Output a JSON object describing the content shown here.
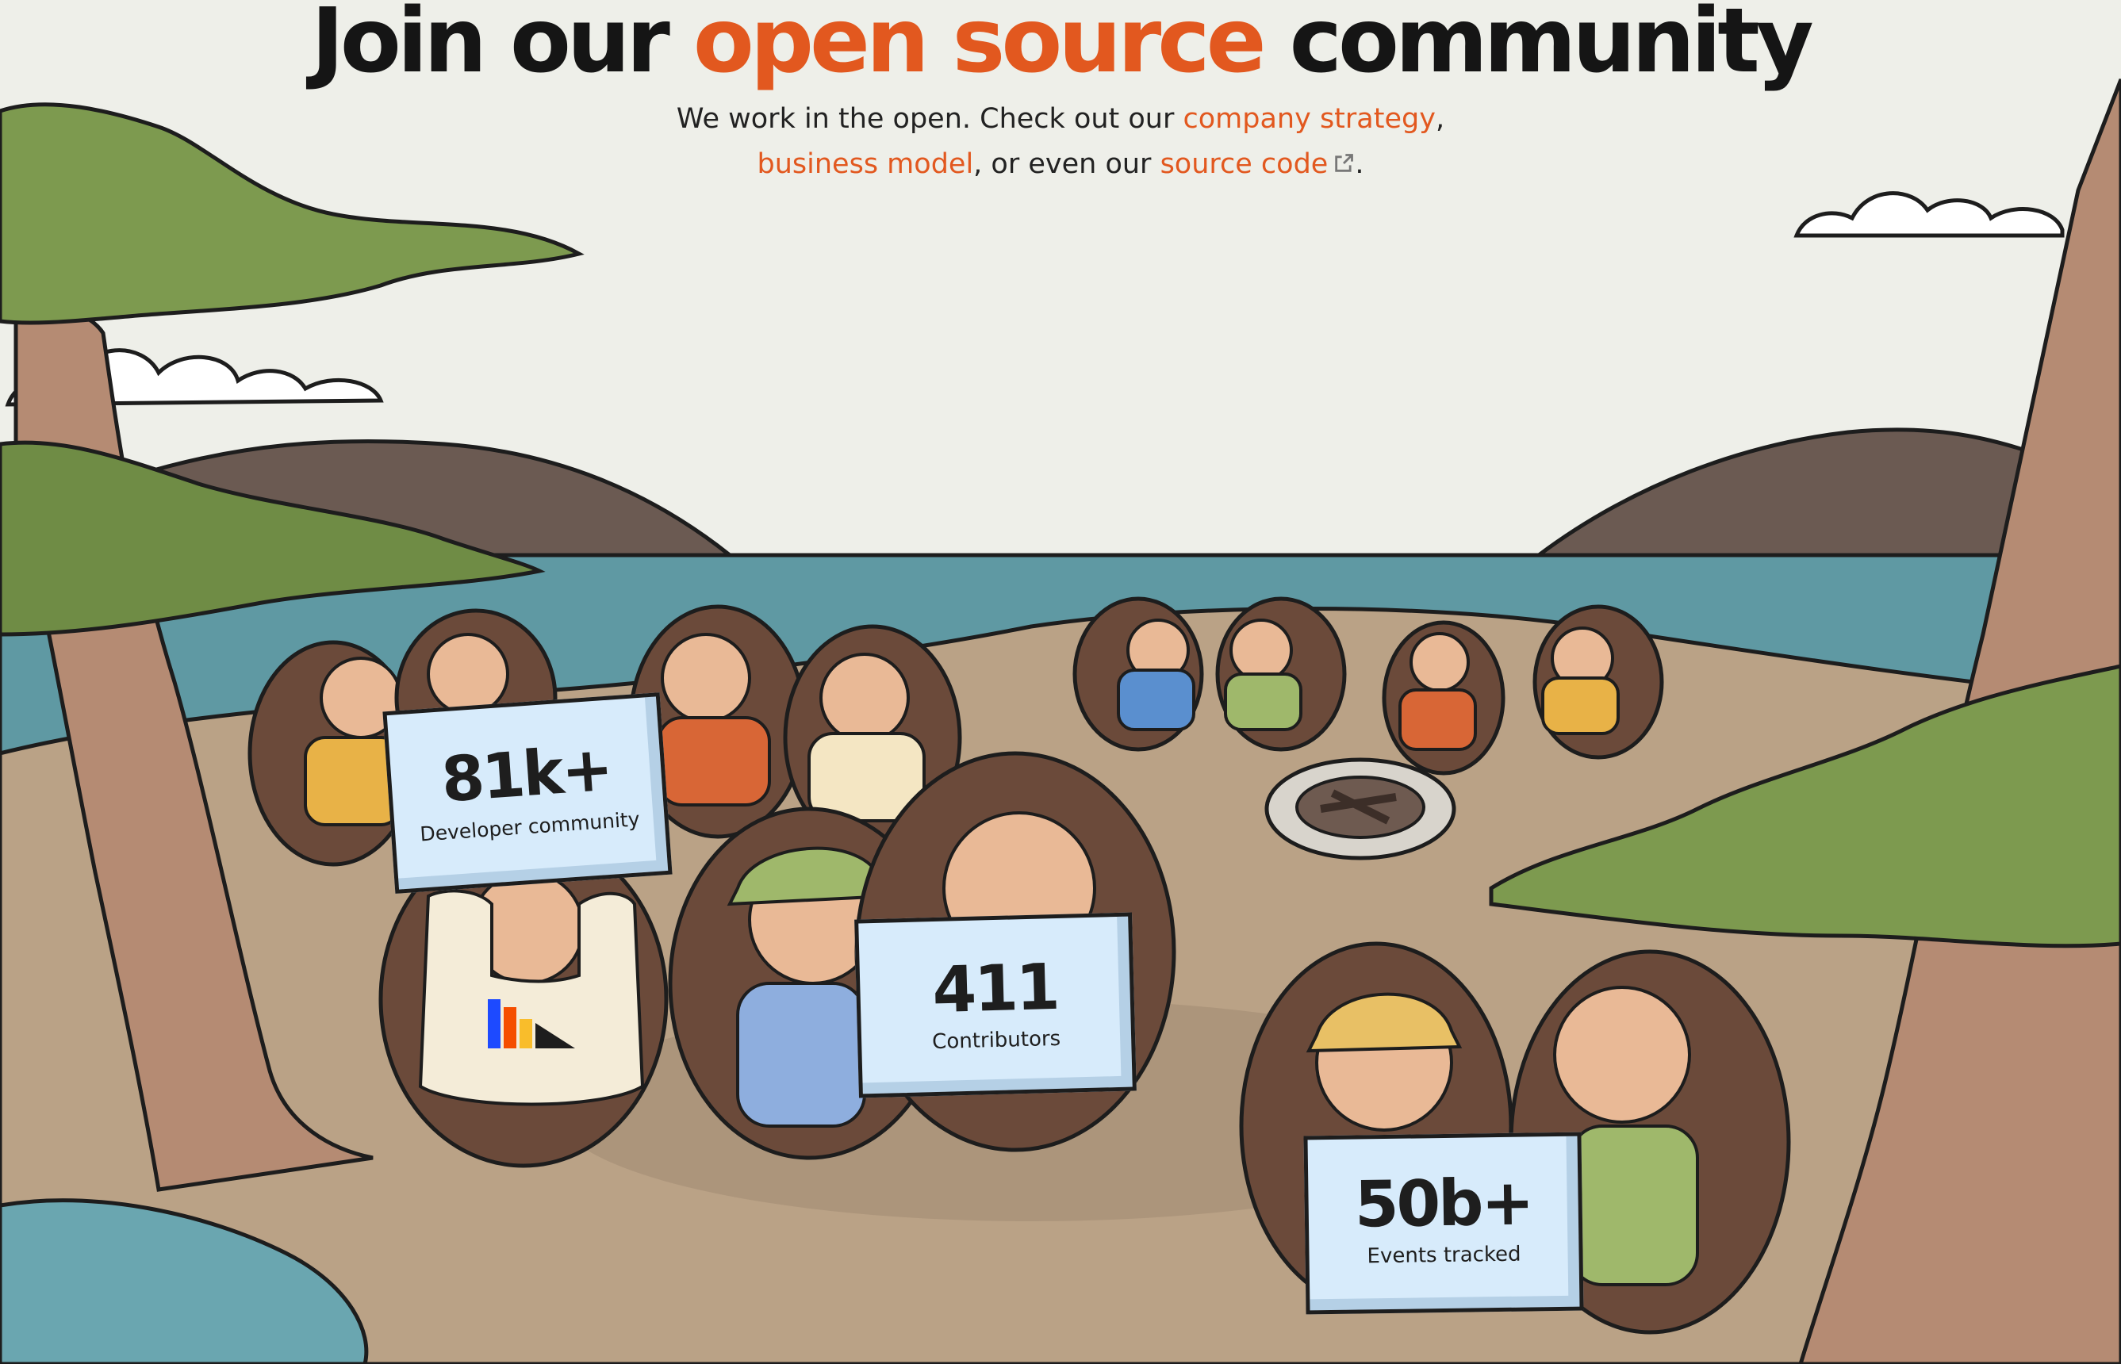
{
  "header": {
    "title_start": "Join our ",
    "title_accent": "open source",
    "title_end": " community"
  },
  "intro": {
    "text_1": "We work in the open. Check out our ",
    "link_strategy": "company strategy",
    "text_2": ",",
    "link_business": "business model",
    "text_3": ", or even our ",
    "link_source": "source code",
    "text_4": "."
  },
  "signs": [
    {
      "value": "81k+",
      "label": "Developer community"
    },
    {
      "value": "411",
      "label": "Contributors"
    },
    {
      "value": "50b+",
      "label": "Events tracked"
    }
  ],
  "colors": {
    "accent": "#e2581f",
    "sky": "#eeefe9",
    "water": "#5f99a3",
    "sand": "#baa286",
    "sign": "#d7ebfb"
  },
  "icons": {
    "external_link": "external-link-icon"
  }
}
